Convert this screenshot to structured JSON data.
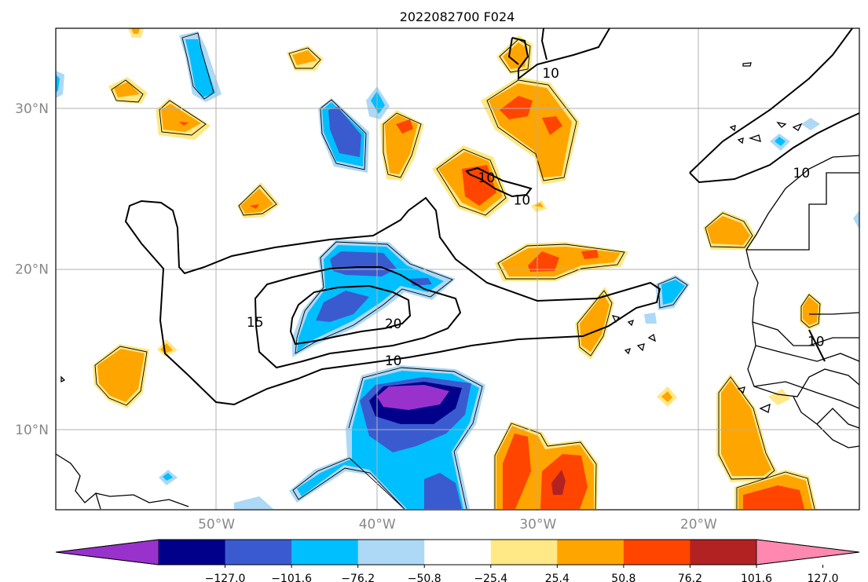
{
  "title": "2022082700 F024",
  "map": {
    "lon_range": [
      -60,
      -10
    ],
    "lat_range": [
      5,
      35
    ],
    "lat_gridlines": [
      {
        "value": 30,
        "label": "30°N"
      },
      {
        "value": 20,
        "label": "20°N"
      },
      {
        "value": 10,
        "label": "10°N"
      }
    ],
    "lon_gridlines": [
      {
        "value": -50,
        "label": "50°W"
      },
      {
        "value": -40,
        "label": "40°W"
      },
      {
        "value": -30,
        "label": "30°W"
      },
      {
        "value": -20,
        "label": "20°W"
      }
    ],
    "grid": true,
    "contour_labels": [
      {
        "text": "10",
        "lon": -29.2,
        "lat": 32.2
      },
      {
        "text": "10",
        "lon": -33.2,
        "lat": 25.7
      },
      {
        "text": "10",
        "lon": -31.0,
        "lat": 24.3
      },
      {
        "text": "10",
        "lon": -13.6,
        "lat": 26.0
      },
      {
        "text": "15",
        "lon": -47.6,
        "lat": 16.7
      },
      {
        "text": "20",
        "lon": -39.0,
        "lat": 16.6
      },
      {
        "text": "10",
        "lon": -39.0,
        "lat": 14.3
      },
      {
        "text": "10",
        "lon": -12.7,
        "lat": 15.5
      }
    ]
  },
  "colorbar": {
    "tick_labels": [
      "−127.0",
      "−101.6",
      "−76.2",
      "−50.8",
      "−25.4",
      "25.4",
      "50.8",
      "76.2",
      "101.6",
      "127.0"
    ],
    "colors": [
      "#9932cc",
      "#00008b",
      "#3a5bd0",
      "#00bfff",
      "#add8f6",
      "#ffffff",
      "#ffe885",
      "#ffa500",
      "#ff4500",
      "#b22222",
      "#ff88b0"
    ],
    "extend": "both"
  }
}
